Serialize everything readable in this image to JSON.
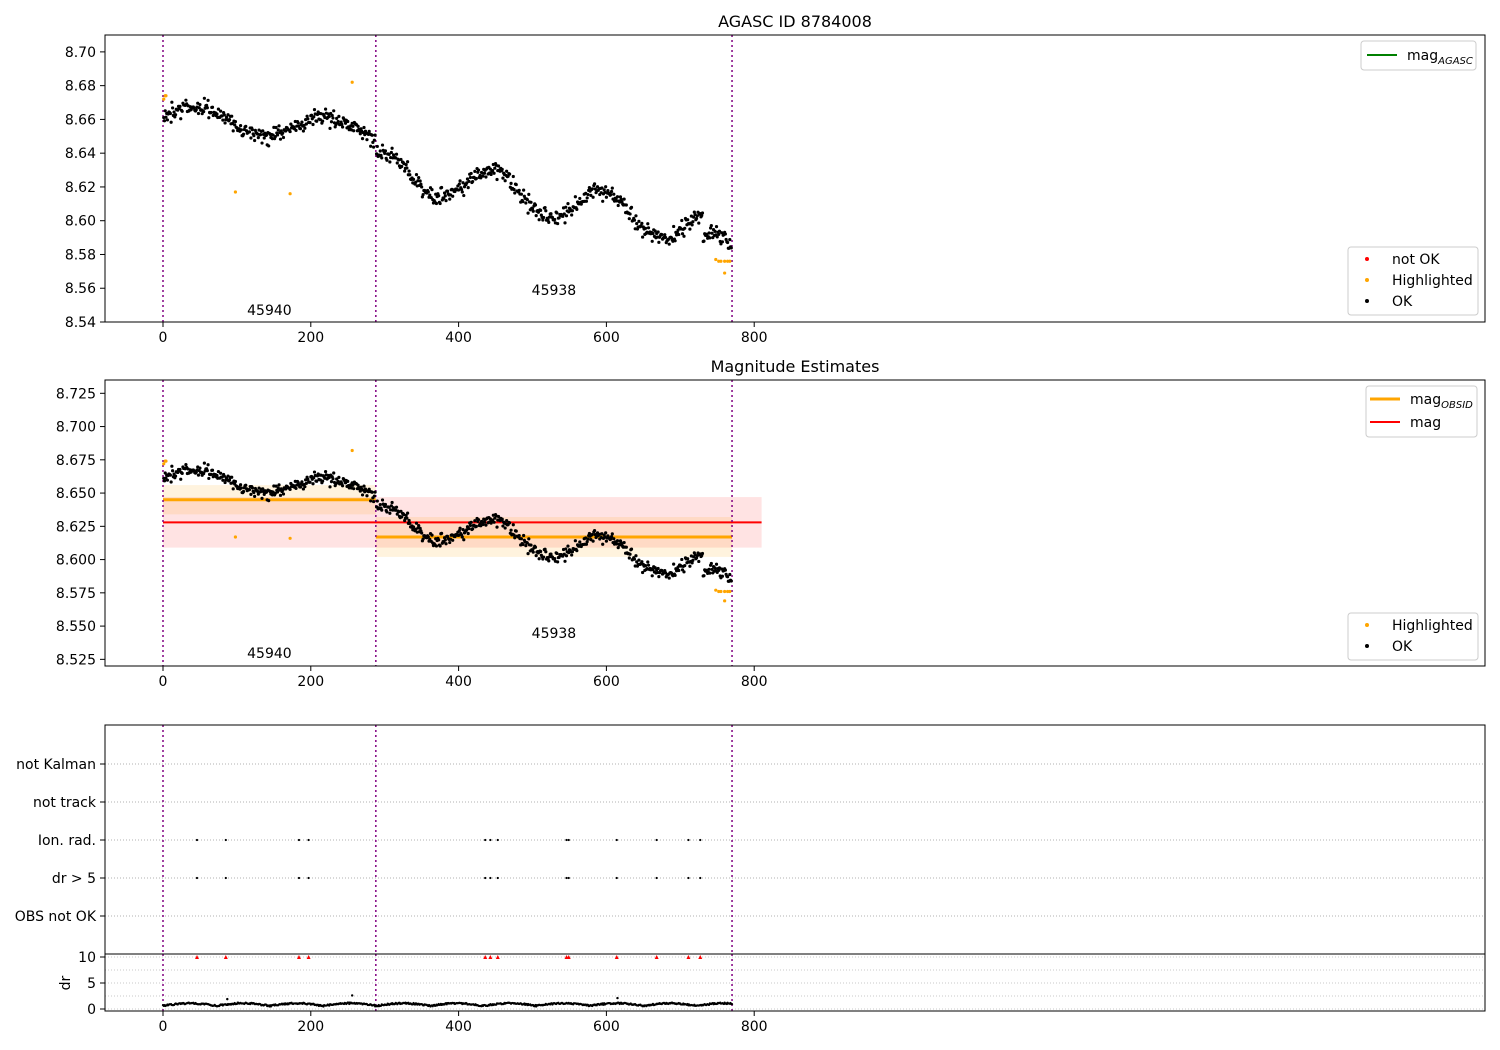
{
  "chart_data": [
    {
      "type": "scatter",
      "title": "AGASC ID 8784008",
      "ylim": [
        8.54,
        8.71
      ],
      "xlim": [
        -40,
        890
      ],
      "yticks": [
        "8.54",
        "8.56",
        "8.58",
        "8.60",
        "8.62",
        "8.64",
        "8.66",
        "8.68",
        "8.70"
      ],
      "xticks": [
        "0",
        "200",
        "400",
        "600",
        "800"
      ],
      "obsid_boundaries": [
        0,
        288,
        770
      ],
      "obsid_labels": [
        {
          "text": "45940",
          "x": 144,
          "y": 8.544
        },
        {
          "text": "45938",
          "x": 529,
          "y": 8.556
        }
      ],
      "segments": [
        {
          "x0": 0,
          "x1": 288,
          "start": 8.662,
          "end": 8.652,
          "wave": 0.007,
          "period": 180
        },
        {
          "x0": 288,
          "x1": 770,
          "start": 8.632,
          "end": 8.592,
          "wave": 0.011,
          "period": 150
        }
      ],
      "series": [
        {
          "name": "not OK",
          "color": "#ff0000",
          "x": [],
          "y": []
        },
        {
          "name": "Highlighted",
          "color": "#ffa500",
          "x": [
            1,
            3,
            4,
            98,
            172,
            256,
            748,
            752,
            755,
            760,
            764,
            767,
            760
          ],
          "y": [
            8.672,
            8.674,
            8.674,
            8.617,
            8.616,
            8.682,
            8.577,
            8.576,
            8.576,
            8.576,
            8.576,
            8.576,
            8.569
          ]
        },
        {
          "name": "OK",
          "color": "#000000",
          "x": [],
          "y": []
        }
      ],
      "lines": [
        {
          "name": "mag_AGASC",
          "color": "#008000"
        }
      ],
      "legend_lines": [
        {
          "name": "mag",
          "sub": "AGASC",
          "color": "#008000"
        }
      ],
      "legend_points": [
        {
          "name": "not OK",
          "color": "#ff0000"
        },
        {
          "name": "Highlighted",
          "color": "#ffa500"
        },
        {
          "name": "OK",
          "color": "#000000"
        }
      ]
    },
    {
      "type": "scatter",
      "title": "Magnitude Estimates",
      "ylim": [
        8.52,
        8.735
      ],
      "xlim": [
        -40,
        890
      ],
      "yticks": [
        "8.525",
        "8.550",
        "8.575",
        "8.600",
        "8.625",
        "8.650",
        "8.675",
        "8.700",
        "8.725"
      ],
      "xticks": [
        "0",
        "200",
        "400",
        "600",
        "800"
      ],
      "obsid_boundaries": [
        0,
        288,
        770
      ],
      "obsid_labels": [
        {
          "text": "45940",
          "x": 144,
          "y": 8.526
        },
        {
          "text": "45938",
          "x": 529,
          "y": 8.541
        }
      ],
      "bands": [
        {
          "name": "mag",
          "color": "#ff0000",
          "x0": 0,
          "x1": 810,
          "value": 8.628,
          "sigma": 0.019
        },
        {
          "name": "mag_OBSID_45940",
          "color": "#ffa500",
          "x0": 0,
          "x1": 288,
          "value": 8.645,
          "sigma": 0.011
        },
        {
          "name": "mag_OBSID_45938",
          "color": "#ffa500",
          "x0": 288,
          "x1": 770,
          "value": 8.617,
          "sigma": 0.015
        }
      ],
      "legend_lines": [
        {
          "name": "mag",
          "sub": "OBSID",
          "color": "#ffa500"
        },
        {
          "name": "mag",
          "sub": "",
          "color": "#ff0000"
        }
      ],
      "legend_points": [
        {
          "name": "Highlighted",
          "color": "#ffa500"
        },
        {
          "name": "OK",
          "color": "#000000"
        }
      ]
    },
    {
      "type": "scatter",
      "categories": [
        "not Kalman",
        "not track",
        "Ion. rad.",
        "dr > 5",
        "OBS not OK"
      ],
      "flag_x": [
        46,
        85,
        184,
        197,
        436,
        443,
        453,
        546,
        549,
        614,
        668,
        711,
        727
      ],
      "flags": {
        "not Kalman": [],
        "not track": [],
        "Ion. rad.": [
          46,
          85,
          184,
          197,
          436,
          443,
          453,
          546,
          549,
          614,
          668,
          711,
          727
        ],
        "dr > 5": [
          46,
          85,
          184,
          197,
          436,
          443,
          453,
          546,
          549,
          614,
          668,
          711,
          727
        ],
        "OBS not OK": []
      },
      "obsid_boundaries": [
        0,
        288,
        770
      ]
    },
    {
      "type": "scatter",
      "ylabel": "dr",
      "ylim": [
        0,
        10.5
      ],
      "yticks": [
        "0",
        "5",
        "10"
      ],
      "xticks": [
        "0",
        "200",
        "400",
        "600",
        "800"
      ],
      "clipped_x": [
        46,
        85,
        184,
        197,
        436,
        443,
        453,
        546,
        549,
        614,
        668,
        711,
        727
      ],
      "clipped_color": "#ff0000",
      "outliers": [
        {
          "x": 87,
          "y": 1.9
        },
        {
          "x": 256,
          "y": 2.6
        },
        {
          "x": 615,
          "y": 2.1
        }
      ],
      "obsid_boundaries": [
        0,
        288,
        770
      ]
    }
  ]
}
